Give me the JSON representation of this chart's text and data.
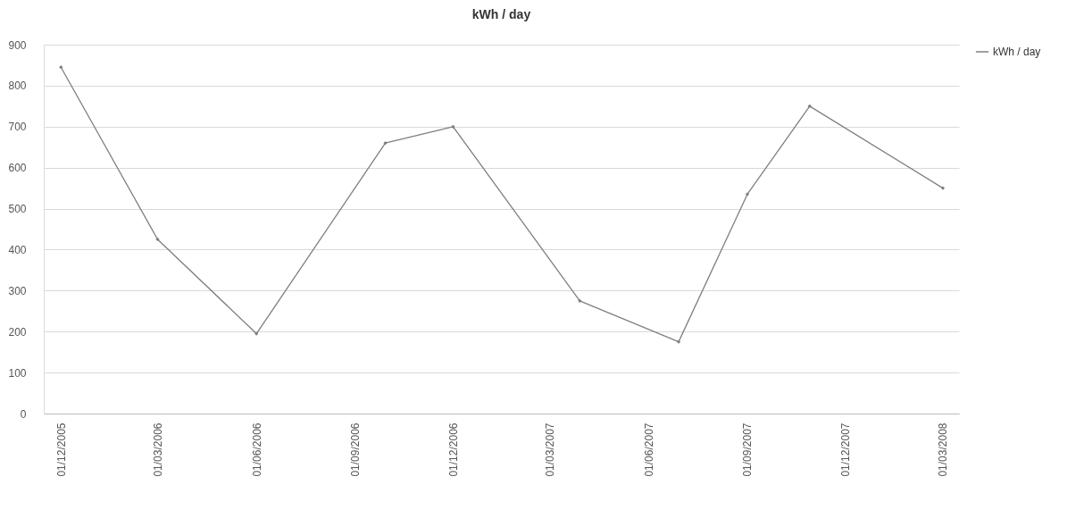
{
  "chart_data": {
    "type": "line",
    "title": "kWh / day",
    "x": [
      "2005-12-01",
      "2006-03-01",
      "2006-06-01",
      "2006-09-29",
      "2006-12-01",
      "2007-03-29",
      "2007-06-29",
      "2007-09-01",
      "2007-10-29",
      "2008-03-01"
    ],
    "series": [
      {
        "name": "kWh / day",
        "color": "#7f7f7f",
        "values": [
          845,
          425,
          195,
          660,
          700,
          275,
          175,
          535,
          750,
          550
        ]
      }
    ],
    "xlim": [
      "2005-11-15",
      "2008-03-16"
    ],
    "xticks": [
      {
        "value": "2005-12-01",
        "label": "01/12/2005"
      },
      {
        "value": "2006-03-01",
        "label": "01/03/2006"
      },
      {
        "value": "2006-06-01",
        "label": "01/06/2006"
      },
      {
        "value": "2006-09-01",
        "label": "01/09/2006"
      },
      {
        "value": "2006-12-01",
        "label": "01/12/2006"
      },
      {
        "value": "2007-03-01",
        "label": "01/03/2007"
      },
      {
        "value": "2007-06-01",
        "label": "01/06/2007"
      },
      {
        "value": "2007-09-01",
        "label": "01/09/2007"
      },
      {
        "value": "2007-12-01",
        "label": "01/12/2007"
      },
      {
        "value": "2008-03-01",
        "label": "01/03/2008"
      }
    ],
    "ylim": [
      0,
      900
    ],
    "yticks": [
      0,
      100,
      200,
      300,
      400,
      500,
      600,
      700,
      800,
      900
    ],
    "grid": "y",
    "legend": "right",
    "marker": "diamond",
    "line_style": "solid"
  }
}
